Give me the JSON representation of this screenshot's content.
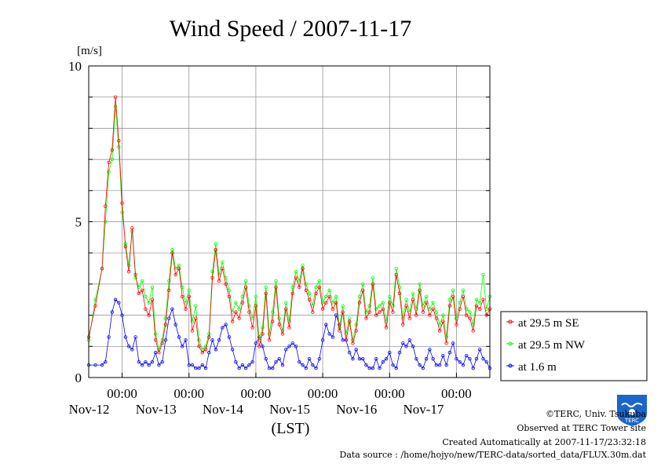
{
  "chart_data": {
    "type": "line",
    "title": "Wind Speed / 2007-11-17",
    "ylabel": "[m/s]",
    "xlabel": "(LST)",
    "ylim": [
      0,
      10
    ],
    "yticks": [
      0,
      5,
      10
    ],
    "xlim": [
      0,
      6
    ],
    "x_units": "days since 2007-11-11 12:00",
    "xticks": [
      {
        "x": 0.5,
        "time": "00:00",
        "date": "Nov-12"
      },
      {
        "x": 1.5,
        "time": "00:00",
        "date": "Nov-13"
      },
      {
        "x": 2.5,
        "time": "00:00",
        "date": "Nov-14"
      },
      {
        "x": 3.5,
        "time": "00:00",
        "date": "Nov-15"
      },
      {
        "x": 4.5,
        "time": "00:00",
        "date": "Nov-16"
      },
      {
        "x": 5.5,
        "time": "00:00",
        "date": "Nov-17"
      }
    ],
    "grid": true,
    "legend_position": "right",
    "series": [
      {
        "name": "at 29.5 m SE",
        "color": "#ff0000",
        "x": [
          0,
          0.1,
          0.2,
          0.25,
          0.3,
          0.35,
          0.4,
          0.45,
          0.5,
          0.55,
          0.6,
          0.65,
          0.7,
          0.75,
          0.8,
          0.85,
          0.9,
          0.95,
          1.0,
          1.05,
          1.1,
          1.15,
          1.2,
          1.25,
          1.3,
          1.35,
          1.4,
          1.45,
          1.5,
          1.55,
          1.6,
          1.65,
          1.7,
          1.75,
          1.8,
          1.85,
          1.9,
          1.95,
          2.0,
          2.05,
          2.1,
          2.15,
          2.2,
          2.25,
          2.3,
          2.35,
          2.4,
          2.45,
          2.5,
          2.55,
          2.6,
          2.65,
          2.7,
          2.75,
          2.8,
          2.85,
          2.9,
          2.95,
          3.0,
          3.05,
          3.1,
          3.15,
          3.2,
          3.25,
          3.3,
          3.35,
          3.4,
          3.45,
          3.5,
          3.55,
          3.6,
          3.65,
          3.7,
          3.75,
          3.8,
          3.85,
          3.9,
          3.95,
          4.0,
          4.05,
          4.1,
          4.15,
          4.2,
          4.25,
          4.3,
          4.35,
          4.4,
          4.45,
          4.5,
          4.55,
          4.6,
          4.65,
          4.7,
          4.75,
          4.8,
          4.85,
          4.9,
          4.95,
          5.0,
          5.05,
          5.1,
          5.15,
          5.2,
          5.25,
          5.3,
          5.35,
          5.4,
          5.45,
          5.5,
          5.55,
          5.6,
          5.65,
          5.7,
          5.75,
          5.8,
          5.85,
          5.9,
          5.95,
          6.0
        ],
        "values": [
          1.3,
          2.3,
          3.5,
          5.5,
          6.9,
          7.3,
          9.0,
          7.6,
          5.6,
          4.2,
          3.4,
          4.8,
          3.3,
          2.7,
          2.8,
          2.2,
          2.0,
          2.5,
          1.2,
          0.8,
          1.1,
          1.7,
          2.8,
          4.0,
          3.3,
          3.5,
          2.6,
          2.2,
          2.6,
          1.5,
          1.9,
          1.0,
          0.8,
          0.9,
          1.3,
          3.2,
          4.1,
          3.1,
          3.5,
          3.0,
          2.6,
          1.8,
          2.1,
          1.9,
          2.4,
          2.9,
          2.1,
          1.6,
          2.3,
          1.0,
          1.4,
          2.7,
          1.2,
          1.8,
          2.9,
          1.7,
          1.4,
          2.2,
          1.6,
          2.7,
          3.2,
          2.9,
          3.5,
          2.8,
          2.5,
          2.1,
          2.7,
          2.9,
          2.2,
          2.4,
          2.6,
          2.2,
          2.4,
          1.5,
          2.1,
          1.2,
          1.8,
          1.1,
          1.5,
          2.4,
          2.8,
          1.9,
          2.1,
          3.0,
          2.0,
          2.1,
          2.2,
          1.6,
          2.4,
          2.1,
          3.3,
          2.7,
          1.7,
          2.3,
          1.9,
          2.5,
          2.0,
          2.8,
          2.1,
          2.4,
          2.0,
          2.2,
          1.9,
          1.5,
          1.8,
          1.1,
          2.3,
          2.6,
          1.7,
          2.2,
          2.6,
          2.0,
          1.9,
          1.5,
          2.3,
          2.2,
          2.5,
          2.0,
          2.2
        ]
      },
      {
        "name": "at 29.5 m NW",
        "color": "#00ff00",
        "x": [
          0,
          0.1,
          0.2,
          0.25,
          0.3,
          0.35,
          0.4,
          0.45,
          0.5,
          0.55,
          0.6,
          0.65,
          0.7,
          0.75,
          0.8,
          0.85,
          0.9,
          0.95,
          1.0,
          1.05,
          1.1,
          1.15,
          1.2,
          1.25,
          1.3,
          1.35,
          1.4,
          1.45,
          1.5,
          1.55,
          1.6,
          1.65,
          1.7,
          1.75,
          1.8,
          1.85,
          1.9,
          1.95,
          2.0,
          2.05,
          2.1,
          2.15,
          2.2,
          2.25,
          2.3,
          2.35,
          2.4,
          2.45,
          2.5,
          2.55,
          2.6,
          2.65,
          2.7,
          2.75,
          2.8,
          2.85,
          2.9,
          2.95,
          3.0,
          3.05,
          3.1,
          3.15,
          3.2,
          3.25,
          3.3,
          3.35,
          3.4,
          3.45,
          3.5,
          3.55,
          3.6,
          3.65,
          3.7,
          3.75,
          3.8,
          3.85,
          3.9,
          3.95,
          4.0,
          4.05,
          4.1,
          4.15,
          4.2,
          4.25,
          4.3,
          4.35,
          4.4,
          4.45,
          4.5,
          4.55,
          4.6,
          4.65,
          4.7,
          4.75,
          4.8,
          4.85,
          4.9,
          4.95,
          5.0,
          5.05,
          5.1,
          5.15,
          5.2,
          5.25,
          5.3,
          5.35,
          5.4,
          5.45,
          5.5,
          5.55,
          5.6,
          5.65,
          5.7,
          5.75,
          5.8,
          5.85,
          5.9,
          5.95,
          6.0
        ],
        "values": [
          1.2,
          2.5,
          3.5,
          5.0,
          6.6,
          7.0,
          8.7,
          7.4,
          5.3,
          4.3,
          3.6,
          4.7,
          3.2,
          2.9,
          3.1,
          2.6,
          2.4,
          2.9,
          1.4,
          0.9,
          1.2,
          1.9,
          3.1,
          4.1,
          3.5,
          3.6,
          2.9,
          2.4,
          2.8,
          1.8,
          2.3,
          1.2,
          0.9,
          1.0,
          1.4,
          3.4,
          4.3,
          3.3,
          3.7,
          3.2,
          2.8,
          2.1,
          2.4,
          2.2,
          2.6,
          3.1,
          2.3,
          1.9,
          2.6,
          1.2,
          1.6,
          2.9,
          1.4,
          2.1,
          3.1,
          1.9,
          1.5,
          2.4,
          1.8,
          2.9,
          3.4,
          3.1,
          3.6,
          3.0,
          2.7,
          2.3,
          2.9,
          3.1,
          2.4,
          2.6,
          2.8,
          2.4,
          2.6,
          1.6,
          2.3,
          1.4,
          1.9,
          1.2,
          1.7,
          2.6,
          3.0,
          2.1,
          2.3,
          3.2,
          2.2,
          2.3,
          2.4,
          1.8,
          2.6,
          2.3,
          3.5,
          2.9,
          1.9,
          2.5,
          2.1,
          2.7,
          2.2,
          3.0,
          2.3,
          2.6,
          2.2,
          2.4,
          2.1,
          1.7,
          2.0,
          1.3,
          2.5,
          2.8,
          1.9,
          2.4,
          2.8,
          2.2,
          2.1,
          1.7,
          2.5,
          2.4,
          3.3,
          2.2,
          2.6
        ]
      },
      {
        "name": "at 1.6 m",
        "color": "#0000ff",
        "x": [
          0,
          0.1,
          0.2,
          0.25,
          0.3,
          0.35,
          0.4,
          0.45,
          0.5,
          0.55,
          0.6,
          0.65,
          0.7,
          0.75,
          0.8,
          0.85,
          0.9,
          0.95,
          1.0,
          1.05,
          1.1,
          1.15,
          1.2,
          1.25,
          1.3,
          1.35,
          1.4,
          1.45,
          1.5,
          1.55,
          1.6,
          1.65,
          1.7,
          1.75,
          1.8,
          1.85,
          1.9,
          1.95,
          2.0,
          2.05,
          2.1,
          2.15,
          2.2,
          2.25,
          2.3,
          2.35,
          2.4,
          2.45,
          2.5,
          2.55,
          2.6,
          2.65,
          2.7,
          2.75,
          2.8,
          2.85,
          2.9,
          2.95,
          3.0,
          3.05,
          3.1,
          3.15,
          3.2,
          3.25,
          3.3,
          3.35,
          3.4,
          3.45,
          3.5,
          3.55,
          3.6,
          3.65,
          3.7,
          3.75,
          3.8,
          3.85,
          3.9,
          3.95,
          4.0,
          4.05,
          4.1,
          4.15,
          4.2,
          4.25,
          4.3,
          4.35,
          4.4,
          4.45,
          4.5,
          4.55,
          4.6,
          4.65,
          4.7,
          4.75,
          4.8,
          4.85,
          4.9,
          4.95,
          5.0,
          5.05,
          5.1,
          5.15,
          5.2,
          5.25,
          5.3,
          5.35,
          5.4,
          5.45,
          5.5,
          5.55,
          5.6,
          5.65,
          5.7,
          5.75,
          5.8,
          5.85,
          5.9,
          5.95,
          6.0
        ],
        "values": [
          0.4,
          0.4,
          0.4,
          0.5,
          1.3,
          2.1,
          2.5,
          2.4,
          2.0,
          1.3,
          1.0,
          0.9,
          1.3,
          0.5,
          0.4,
          0.5,
          0.4,
          0.5,
          0.8,
          0.4,
          0.5,
          1.2,
          1.9,
          2.2,
          1.7,
          1.3,
          1.0,
          1.2,
          0.4,
          0.4,
          0.3,
          0.3,
          0.4,
          0.3,
          0.8,
          1.2,
          0.9,
          1.2,
          1.6,
          1.7,
          1.3,
          0.9,
          0.5,
          0.3,
          0.4,
          0.3,
          0.4,
          0.5,
          1.1,
          1.3,
          1.0,
          0.6,
          0.3,
          0.3,
          0.5,
          0.6,
          0.4,
          0.9,
          1.0,
          1.1,
          1.0,
          0.5,
          0.4,
          0.3,
          0.6,
          0.4,
          0.3,
          0.6,
          1.2,
          1.7,
          1.4,
          1.3,
          2.0,
          1.7,
          1.2,
          1.2,
          0.8,
          0.6,
          0.9,
          0.6,
          0.6,
          0.4,
          0.3,
          0.3,
          0.6,
          0.3,
          0.5,
          0.6,
          0.8,
          0.4,
          0.3,
          0.8,
          1.1,
          1.0,
          1.2,
          1.0,
          0.6,
          0.4,
          0.3,
          0.6,
          0.9,
          0.6,
          0.4,
          0.4,
          0.7,
          0.4,
          0.8,
          1.1,
          0.6,
          0.5,
          0.4,
          0.7,
          0.6,
          0.3,
          0.6,
          0.9,
          0.6,
          0.5,
          0.3
        ]
      }
    ]
  },
  "credits": {
    "copyright": "©TERC, Univ. Tsukuba",
    "site": "Observed at TERC Tower site",
    "created": "Created Automatically at 2007-11-17/23:32:18",
    "source": "Data source : /home/hojyo/new/TERC-data/sorted_data/FLUX.30m.dat",
    "logo_text": "TERC"
  },
  "colors": {
    "grid": "#888888",
    "logo_blue": "#1a66cc"
  }
}
